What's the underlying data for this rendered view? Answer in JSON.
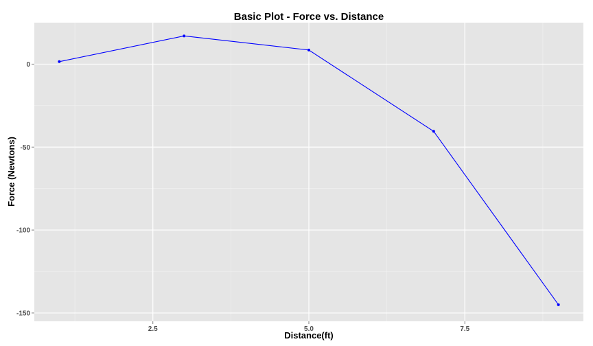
{
  "chart_data": {
    "type": "line",
    "title": "Basic Plot - Force vs. Distance",
    "xlabel": "Distance(ft)",
    "ylabel": "Force (Newtons)",
    "xlim": [
      0.6,
      9.4
    ],
    "ylim": [
      -155,
      25
    ],
    "x_ticks": [
      2.5,
      5.0,
      7.5
    ],
    "x_tick_labels": [
      "2.5",
      "5.0",
      "7.5"
    ],
    "y_ticks": [
      0,
      -50,
      -100,
      -150
    ],
    "y_tick_labels": [
      "0",
      "-50",
      "-100",
      "-150"
    ],
    "grid": true,
    "series": [
      {
        "x": [
          1,
          3,
          5,
          7,
          9
        ],
        "values": [
          1.5,
          17,
          8.5,
          -40.5,
          -145
        ],
        "color": "#0000ff"
      }
    ]
  },
  "colors": {
    "panel_background": "#e5e5e5",
    "grid_major": "#ffffff",
    "grid_minor": "#f2f2f2",
    "line": "#0000ff"
  }
}
